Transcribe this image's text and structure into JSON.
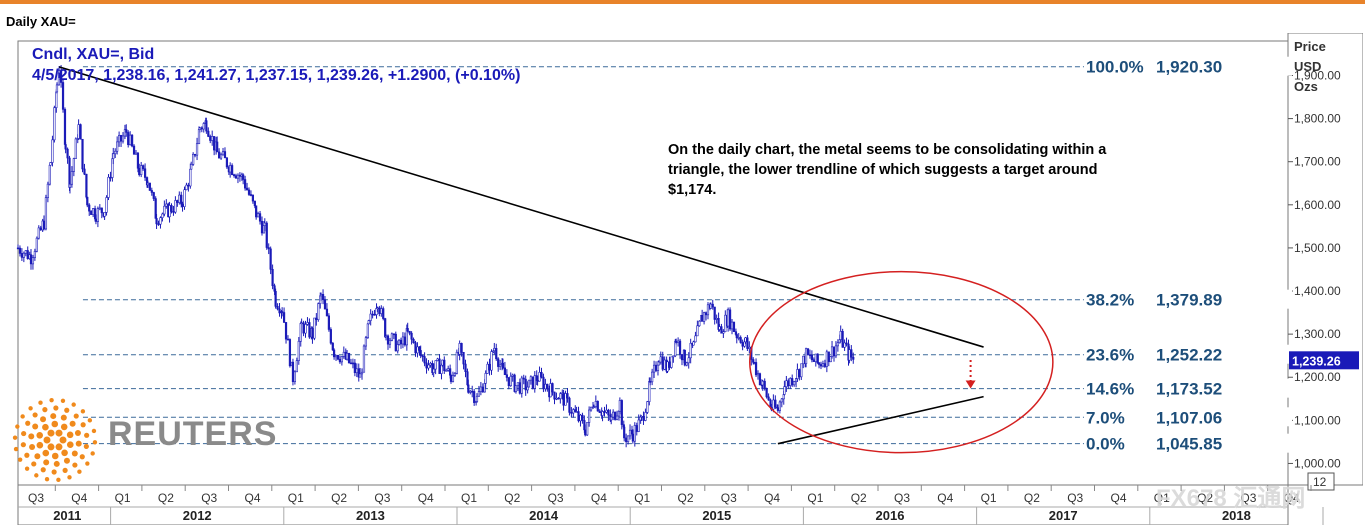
{
  "window": {
    "title": "Daily XAU="
  },
  "header": {
    "line1": "Cndl, XAU=, Bid",
    "line2": "4/5/2017, 1,238.16, 1,241.27, 1,237.15, 1,239.26, +1.2900, (+0.10%)"
  },
  "annotation": "On the daily chart, the metal seems to be consolidating within a triangle, the lower trendline of which suggests a target around $1,174.",
  "axis": {
    "title_lines": [
      "Price",
      "USD",
      "Ozs"
    ],
    "last_price_label": "1,239.26",
    "scale_box": "12"
  },
  "branding": {
    "logo_text": "REUTERS",
    "watermark": "FX678 汇通网"
  },
  "colors": {
    "candles": "#1a1ab8",
    "fib_line": "#3c6a9a",
    "fib_text": "#1d4e7a",
    "circle": "#d42020",
    "price_tag": "#1a1ab8",
    "accent": "#e8832a"
  },
  "chart_data": {
    "type": "candlestick",
    "instrument": "XAU=",
    "ylim": [
      950,
      1980
    ],
    "y_ticks": [
      1000,
      1100,
      1200,
      1300,
      1400,
      1500,
      1600,
      1700,
      1800,
      1900
    ],
    "y_tick_labels": [
      "1,000.00",
      "1,100.00",
      "1,200.00",
      "1,300.00",
      "1,400.00",
      "1,500.00",
      "1,600.00",
      "1,700.00",
      "1,800.00",
      "1,900.00"
    ],
    "x_quarters": [
      "Q3",
      "Q4",
      "Q1",
      "Q2",
      "Q3",
      "Q4",
      "Q1",
      "Q2",
      "Q3",
      "Q4",
      "Q1",
      "Q2",
      "Q3",
      "Q4",
      "Q1",
      "Q2",
      "Q3",
      "Q4",
      "Q1",
      "Q2",
      "Q3",
      "Q4",
      "Q1",
      "Q2",
      "Q3",
      "Q4",
      "Q1",
      "Q2",
      "Q3",
      "Q4"
    ],
    "x_years": [
      {
        "label": "2011",
        "start": 0,
        "end": 2
      },
      {
        "label": "2012",
        "start": 2,
        "end": 6
      },
      {
        "label": "2013",
        "start": 6,
        "end": 10
      },
      {
        "label": "2014",
        "start": 10,
        "end": 14
      },
      {
        "label": "2015",
        "start": 14,
        "end": 18
      },
      {
        "label": "2016",
        "start": 18,
        "end": 22
      },
      {
        "label": "2017",
        "start": 22,
        "end": 26
      },
      {
        "label": "2018",
        "start": 26,
        "end": 30
      }
    ],
    "fib_levels": [
      {
        "pct": "100.0%",
        "value": 1920.3,
        "label": "1,920.30"
      },
      {
        "pct": "38.2%",
        "value": 1379.89,
        "label": "1,379.89"
      },
      {
        "pct": "23.6%",
        "value": 1252.22,
        "label": "1,252.22"
      },
      {
        "pct": "14.6%",
        "value": 1173.52,
        "label": "1,173.52"
      },
      {
        "pct": "7.0%",
        "value": 1107.06,
        "label": "1,107.06"
      },
      {
        "pct": "0.0%",
        "value": 1045.85,
        "label": "1,045.85"
      }
    ],
    "price_path": [
      [
        0,
        1500
      ],
      [
        0.3,
        1480
      ],
      [
        0.6,
        1560
      ],
      [
        0.75,
        1700
      ],
      [
        0.9,
        1880
      ],
      [
        0.95,
        1920
      ],
      [
        1.1,
        1740
      ],
      [
        1.2,
        1650
      ],
      [
        1.4,
        1780
      ],
      [
        1.6,
        1600
      ],
      [
        1.8,
        1580
      ],
      [
        2.0,
        1590
      ],
      [
        2.2,
        1720
      ],
      [
        2.5,
        1770
      ],
      [
        2.8,
        1680
      ],
      [
        3.0,
        1660
      ],
      [
        3.2,
        1570
      ],
      [
        3.5,
        1590
      ],
      [
        3.8,
        1610
      ],
      [
        4.0,
        1680
      ],
      [
        4.2,
        1780
      ],
      [
        4.35,
        1790
      ],
      [
        4.6,
        1720
      ],
      [
        4.9,
        1690
      ],
      [
        5.2,
        1660
      ],
      [
        5.5,
        1580
      ],
      [
        5.7,
        1540
      ],
      [
        5.95,
        1380
      ],
      [
        6.1,
        1360
      ],
      [
        6.35,
        1200
      ],
      [
        6.55,
        1320
      ],
      [
        6.8,
        1300
      ],
      [
        7.0,
        1390
      ],
      [
        7.3,
        1260
      ],
      [
        7.6,
        1240
      ],
      [
        7.9,
        1200
      ],
      [
        8.1,
        1320
      ],
      [
        8.3,
        1380
      ],
      [
        8.5,
        1300
      ],
      [
        8.8,
        1270
      ],
      [
        9.0,
        1300
      ],
      [
        9.3,
        1250
      ],
      [
        9.6,
        1220
      ],
      [
        9.8,
        1230
      ],
      [
        10.0,
        1200
      ],
      [
        10.2,
        1260
      ],
      [
        10.4,
        1180
      ],
      [
        10.6,
        1150
      ],
      [
        10.8,
        1200
      ],
      [
        11.0,
        1270
      ],
      [
        11.2,
        1210
      ],
      [
        11.5,
        1180
      ],
      [
        11.8,
        1180
      ],
      [
        12.0,
        1200
      ],
      [
        12.3,
        1170
      ],
      [
        12.6,
        1150
      ],
      [
        12.9,
        1110
      ],
      [
        13.1,
        1080
      ],
      [
        13.3,
        1150
      ],
      [
        13.5,
        1120
      ],
      [
        13.7,
        1100
      ],
      [
        13.9,
        1140
      ],
      [
        14.0,
        1060
      ],
      [
        14.2,
        1070
      ],
      [
        14.4,
        1100
      ],
      [
        14.6,
        1180
      ],
      [
        14.8,
        1250
      ],
      [
        15.0,
        1220
      ],
      [
        15.2,
        1290
      ],
      [
        15.4,
        1240
      ],
      [
        15.6,
        1270
      ],
      [
        15.8,
        1340
      ],
      [
        16.0,
        1370
      ],
      [
        16.2,
        1310
      ],
      [
        16.4,
        1340
      ],
      [
        16.6,
        1300
      ],
      [
        16.8,
        1280
      ],
      [
        17.0,
        1230
      ],
      [
        17.2,
        1180
      ],
      [
        17.4,
        1130
      ],
      [
        17.55,
        1125
      ],
      [
        17.7,
        1180
      ],
      [
        18.0,
        1210
      ],
      [
        18.2,
        1250
      ],
      [
        18.5,
        1230
      ],
      [
        18.8,
        1260
      ],
      [
        19.0,
        1290
      ],
      [
        19.2,
        1250
      ],
      [
        19.3,
        1239.26
      ]
    ],
    "trendlines": [
      {
        "name": "upper",
        "from": [
          0.95,
          1920
        ],
        "to": [
          22.3,
          1270
        ]
      },
      {
        "name": "lower",
        "from": [
          17.55,
          1045.85
        ],
        "to": [
          22.3,
          1155
        ]
      }
    ],
    "triangle_circle": {
      "center": [
        20.4,
        1235
      ],
      "radius_quarters": 3.5,
      "radius_value": 210
    },
    "target_arrow": {
      "from": 1240,
      "to": 1174
    },
    "grid": false,
    "legend": "none"
  }
}
